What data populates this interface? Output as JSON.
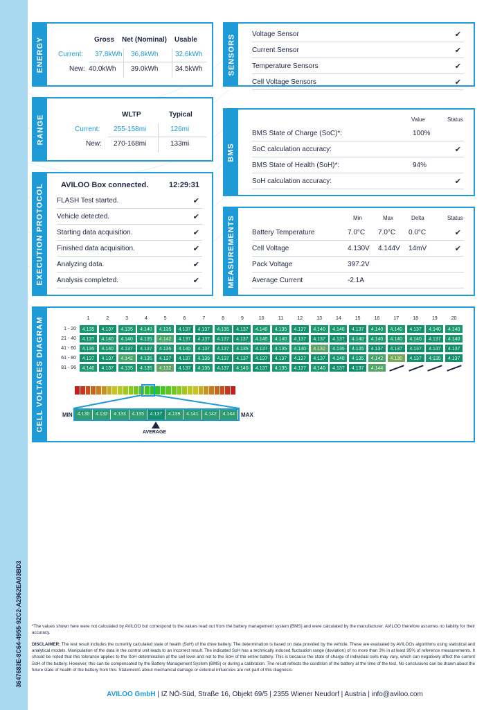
{
  "doc_id": "3647683E-8C64-4955-92C2-A2962EA03BD3",
  "energy": {
    "title": "ENERGY",
    "headers": [
      "Gross",
      "Net (Nominal)",
      "Usable"
    ],
    "current_label": "Current:",
    "current": [
      "37.8kWh",
      "36.8kWh",
      "32.6kWh"
    ],
    "new_label": "New:",
    "new": [
      "40.0kWh",
      "39.0kWh",
      "34.5kWh"
    ]
  },
  "sensors": {
    "title": "SENSORS",
    "items": [
      "Voltage Sensor",
      "Current Sensor",
      "Temperature Sensors",
      "Cell Voltage Sensors"
    ]
  },
  "range": {
    "title": "RANGE",
    "headers": [
      "WLTP",
      "Typical"
    ],
    "current_label": "Current:",
    "current": [
      "255-158mi",
      "126mi"
    ],
    "new_label": "New:",
    "new": [
      "270-168mi",
      "133mi"
    ]
  },
  "bms": {
    "title": "BMS",
    "headers": [
      "Value",
      "Status"
    ],
    "rows": [
      {
        "label": "BMS State of Charge (SoC)*:",
        "value": "100%",
        "check": false
      },
      {
        "label": "SoC calculation accuracy:",
        "value": "",
        "check": true
      },
      {
        "label": "BMS State of Health (SoH)*:",
        "value": "94%",
        "check": false
      },
      {
        "label": "SoH calculation accuracy:",
        "value": "",
        "check": true
      }
    ]
  },
  "execution": {
    "title": "EXECUTION PROTOCOL",
    "connected": "AVILOO Box connected.",
    "time": "12:29:31",
    "steps": [
      "FLASH Test started.",
      "Vehicle detected.",
      "Starting data acquisition.",
      "Finished data acquisition.",
      "Analyzing data.",
      "Analysis completed."
    ]
  },
  "measurements": {
    "title": "MEASUREMENTS",
    "headers": [
      "Min",
      "Max",
      "Delta",
      "Status"
    ],
    "rows": [
      {
        "label": "Battery Temperature",
        "min": "7.0°C",
        "max": "7.0°C",
        "delta": "0.0°C",
        "check": true
      },
      {
        "label": "Cell Voltage",
        "min": "4.130V",
        "max": "4.144V",
        "delta": "14mV",
        "check": true
      },
      {
        "label": "Pack Voltage",
        "min": "397.2V",
        "max": "",
        "delta": "",
        "check": false
      },
      {
        "label": "Average Current",
        "min": "-2.1A",
        "max": "",
        "delta": "",
        "check": false
      }
    ]
  },
  "cells": {
    "title": "CELL VOLTAGES DIAGRAM",
    "columns": [
      "1",
      "2",
      "3",
      "4",
      "5",
      "6",
      "7",
      "8",
      "9",
      "10",
      "11",
      "12",
      "13",
      "14",
      "15",
      "16",
      "17",
      "18",
      "19",
      "20"
    ],
    "rows": [
      {
        "label": "1 - 20",
        "values": [
          "4.135",
          "4.137",
          "4.135",
          "4.140",
          "4.135",
          "4.137",
          "4.137",
          "4.135",
          "4.137",
          "4.140",
          "4.135",
          "4.137",
          "4.140",
          "4.140",
          "4.137",
          "4.140",
          "4.140",
          "4.137",
          "4.140",
          "4.140"
        ]
      },
      {
        "label": "21 - 40",
        "values": [
          "4.137",
          "4.140",
          "4.140",
          "4.135",
          "4.142",
          "4.137",
          "4.137",
          "4.137",
          "4.137",
          "4.140",
          "4.140",
          "4.137",
          "4.137",
          "4.137",
          "4.140",
          "4.140",
          "4.140",
          "4.140",
          "4.137",
          "4.140"
        ]
      },
      {
        "label": "41 - 60",
        "values": [
          "4.135",
          "4.140",
          "4.137",
          "4.137",
          "4.135",
          "4.140",
          "4.137",
          "4.137",
          "4.135",
          "4.137",
          "4.135",
          "4.140",
          "4.132",
          "4.135",
          "4.135",
          "4.137",
          "4.137",
          "4.137",
          "4.137",
          "4.137"
        ]
      },
      {
        "label": "61 - 80",
        "values": [
          "4.137",
          "4.137",
          "4.142",
          "4.135",
          "4.137",
          "4.137",
          "4.135",
          "4.137",
          "4.137",
          "4.137",
          "4.137",
          "4.137",
          "4.137",
          "4.140",
          "4.135",
          "4.142",
          "4.130",
          "4.137",
          "4.135",
          "4.137"
        ]
      },
      {
        "label": "81 - 96",
        "values": [
          "4.140",
          "4.137",
          "4.135",
          "4.135",
          "4.132",
          "4.137",
          "4.135",
          "4.137",
          "4.140",
          "4.137",
          "4.135",
          "4.137",
          "4.140",
          "4.137",
          "4.137",
          "4.144"
        ]
      }
    ],
    "legend_min": "MIN",
    "legend_max": "MAX",
    "legend_values": [
      "4.130",
      "4.132",
      "4.133",
      "4.135",
      "4.137",
      "4.139",
      "4.141",
      "4.142",
      "4.144"
    ],
    "average_label": "AVERAGE"
  },
  "footnote": "*The values shown here were not calculated by AVILOO but correspond to the values read out from the battery management system (BMS) and were calculated by the manufacturer. AVILOO therefore assumes no liability for their accuracy.",
  "disclaimer_label": "DISCLAIMER:",
  "disclaimer": " The test result includes the currently calculated state of health (SoH) of the drive battery. The determination is based on data provided by the vehicle. These are evaluated by AVILOOs algorithms using statistical and analytical models. Manipulation of the data in the control unit leads to an incorrect result. The indicated SoH has a technically induced fluctuation range (deviation) of no more than 3% in at least 95% of reference measurements. It should be noted that this tolerance applies to the SoH determination at the cell level and not to the SoH of the entire battery. This is because the state of charge of individual cells may vary, which can negatively affect the current SoH of the battery. However, this can be compensated by the Battery Management System (BMS) or during a calibration. The result reflects the condition of the battery at the time of the test. No conclusions can be drawn about the future state of health of the battery from this. Statements about mechanical damage or external influences are not part of this diagnosis.",
  "footer": {
    "company": "AVILOO GmbH",
    "address": " | IZ NÖ-Süd, Straße 16, Objekt 69/5 | 2355 Wiener Neudorf | Austria | info@aviloo.com"
  },
  "colors": {
    "accent": "#1e9ad6",
    "cell": "#1a9670",
    "strip": "#a9d9f1"
  }
}
